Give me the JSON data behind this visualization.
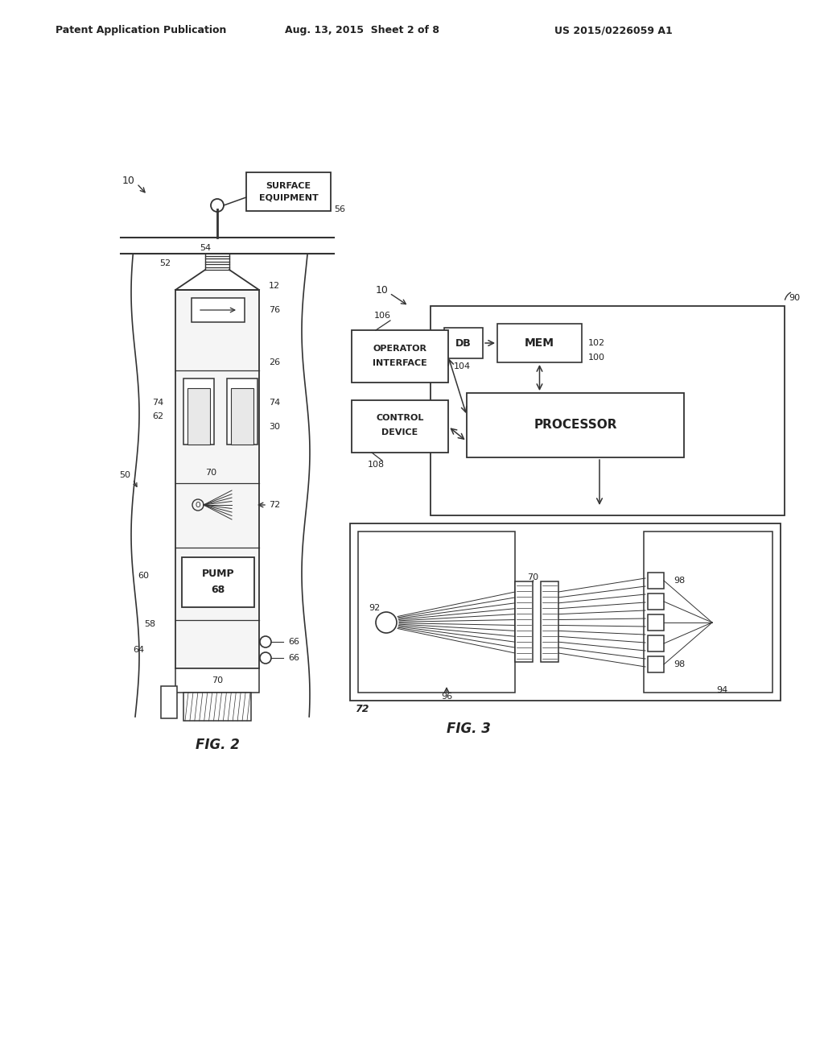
{
  "header_left": "Patent Application Publication",
  "header_mid": "Aug. 13, 2015  Sheet 2 of 8",
  "header_right": "US 2015/0226059 A1",
  "fig2_label": "FIG. 2",
  "fig3_label": "FIG. 3",
  "bg_color": "#ffffff",
  "line_color": "#333333",
  "text_color": "#222222"
}
